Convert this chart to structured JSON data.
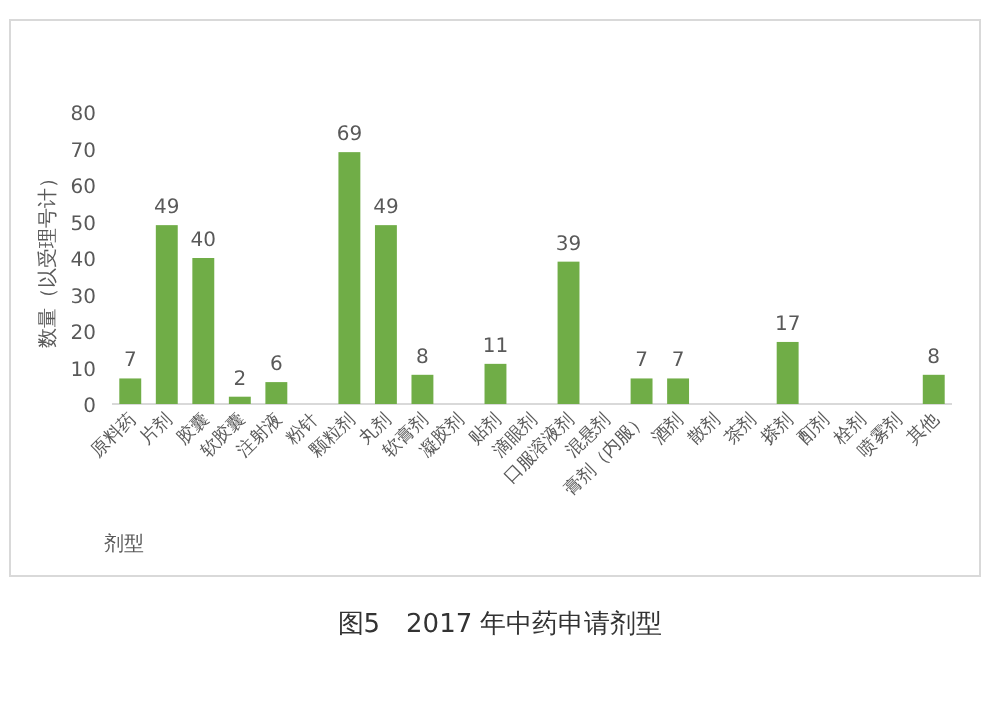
{
  "chart_data": {
    "type": "bar",
    "ylabel": "数量（以受理号计）",
    "xlabel": "剂型",
    "categories": [
      "原料药",
      "片剂",
      "胶囊",
      "软胶囊",
      "注射液",
      "粉针",
      "颗粒剂",
      "丸剂",
      "软膏剂",
      "凝胶剂",
      "贴剂",
      "滴眼剂",
      "口服溶液剂",
      "混悬剂",
      "膏剂（内服）",
      "酒剂",
      "散剂",
      "茶剂",
      "搽剂",
      "酊剂",
      "栓剂",
      "喷雾剂",
      "其他"
    ],
    "values": [
      7,
      49,
      40,
      2,
      6,
      null,
      69,
      49,
      8,
      null,
      11,
      null,
      39,
      null,
      7,
      7,
      null,
      null,
      17,
      null,
      null,
      null,
      8
    ],
    "value_labels": [
      "7",
      "49",
      "40",
      "2",
      "6",
      null,
      "69",
      "49",
      "8",
      null,
      "11",
      null,
      "39",
      null,
      "7",
      "7",
      null,
      null,
      "17",
      null,
      null,
      null,
      "8"
    ],
    "color": "#70ad47",
    "ylim": [
      0,
      80
    ],
    "yticks": [
      0,
      10,
      20,
      30,
      40,
      50,
      60,
      70,
      80
    ],
    "grid": false,
    "annotations": [
      "图5　2017 年中药申请剂型"
    ]
  }
}
